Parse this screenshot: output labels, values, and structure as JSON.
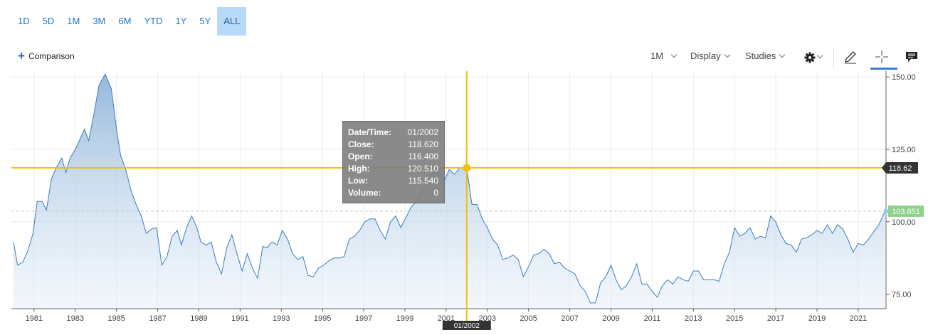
{
  "ranges": [
    {
      "label": "1D"
    },
    {
      "label": "5D"
    },
    {
      "label": "1M"
    },
    {
      "label": "3M"
    },
    {
      "label": "6M"
    },
    {
      "label": "YTD"
    },
    {
      "label": "1Y"
    },
    {
      "label": "5Y"
    },
    {
      "label": "ALL",
      "active": true
    }
  ],
  "comparison": {
    "label": "Comparison"
  },
  "toolbar": {
    "interval": "1M",
    "display": "Display",
    "studies": "Studies"
  },
  "tooltip": {
    "rows": [
      {
        "label": "Date/Time:",
        "value": "01/2002"
      },
      {
        "label": "Close:",
        "value": "118.620"
      },
      {
        "label": "Open:",
        "value": "116.400"
      },
      {
        "label": "High:",
        "value": "120.510"
      },
      {
        "label": "Low:",
        "value": "115.540"
      },
      {
        "label": "Volume:",
        "value": "0"
      }
    ]
  },
  "colors": {
    "line": "#3a7dbf",
    "crosshair": "#f2c200",
    "last": "#8fd18a",
    "crosshair_label": "#333333"
  },
  "chart_data": {
    "type": "area",
    "ylim": [
      70,
      152
    ],
    "xlim": [
      1979.9,
      2022.35
    ],
    "yticks": [
      {
        "v": 150,
        "label": "150.00"
      },
      {
        "v": 125,
        "label": "125.00"
      },
      {
        "v": 100,
        "label": "100.00"
      },
      {
        "v": 75,
        "label": "75.00"
      }
    ],
    "xticks": [
      {
        "v": 1981,
        "label": "1981"
      },
      {
        "v": 1983,
        "label": "1983"
      },
      {
        "v": 1985,
        "label": "1985"
      },
      {
        "v": 1987,
        "label": "1987"
      },
      {
        "v": 1989,
        "label": "1989"
      },
      {
        "v": 1991,
        "label": "1991"
      },
      {
        "v": 1993,
        "label": "1993"
      },
      {
        "v": 1995,
        "label": "1995"
      },
      {
        "v": 1997,
        "label": "1997"
      },
      {
        "v": 1999,
        "label": "1999"
      },
      {
        "v": 2001,
        "label": "2001"
      },
      {
        "v": 2003,
        "label": "2003"
      },
      {
        "v": 2005,
        "label": "2005"
      },
      {
        "v": 2007,
        "label": "2007"
      },
      {
        "v": 2009,
        "label": "2009"
      },
      {
        "v": 2011,
        "label": "2011"
      },
      {
        "v": 2013,
        "label": "2013"
      },
      {
        "v": 2015,
        "label": "2015"
      },
      {
        "v": 2017,
        "label": "2017"
      },
      {
        "v": 2019,
        "label": "2019"
      },
      {
        "v": 2021,
        "label": "2021"
      }
    ],
    "crosshair": {
      "x": 2002.0,
      "y": 118.62,
      "x_label": "01/2002",
      "y_label": "118.62"
    },
    "last": {
      "y": 103.651,
      "label": "103.651"
    },
    "points": [
      [
        1980.0,
        93
      ],
      [
        1980.2,
        85
      ],
      [
        1980.45,
        86
      ],
      [
        1980.7,
        90
      ],
      [
        1980.95,
        96
      ],
      [
        1981.15,
        107
      ],
      [
        1981.4,
        107
      ],
      [
        1981.6,
        104
      ],
      [
        1981.85,
        115
      ],
      [
        1982.1,
        119
      ],
      [
        1982.35,
        122
      ],
      [
        1982.55,
        117
      ],
      [
        1982.75,
        122
      ],
      [
        1983.0,
        125
      ],
      [
        1983.2,
        128
      ],
      [
        1983.45,
        132
      ],
      [
        1983.65,
        128
      ],
      [
        1983.9,
        137
      ],
      [
        1984.15,
        147
      ],
      [
        1984.45,
        151
      ],
      [
        1984.75,
        146
      ],
      [
        1985.0,
        132
      ],
      [
        1985.2,
        123
      ],
      [
        1985.45,
        118
      ],
      [
        1985.7,
        111
      ],
      [
        1985.95,
        106
      ],
      [
        1986.2,
        102
      ],
      [
        1986.45,
        96
      ],
      [
        1986.7,
        97.5
      ],
      [
        1986.95,
        98
      ],
      [
        1987.2,
        85
      ],
      [
        1987.45,
        88
      ],
      [
        1987.7,
        95
      ],
      [
        1987.95,
        97
      ],
      [
        1988.15,
        92
      ],
      [
        1988.4,
        98
      ],
      [
        1988.65,
        102
      ],
      [
        1988.9,
        98
      ],
      [
        1989.1,
        93
      ],
      [
        1989.35,
        92
      ],
      [
        1989.6,
        93
      ],
      [
        1989.85,
        86
      ],
      [
        1990.1,
        82
      ],
      [
        1990.35,
        91
      ],
      [
        1990.6,
        95.5
      ],
      [
        1990.85,
        89
      ],
      [
        1991.1,
        83
      ],
      [
        1991.35,
        89
      ],
      [
        1991.6,
        84
      ],
      [
        1991.85,
        80.5
      ],
      [
        1992.1,
        91.5
      ],
      [
        1992.3,
        91
      ],
      [
        1992.55,
        93
      ],
      [
        1992.8,
        92
      ],
      [
        1993.05,
        97
      ],
      [
        1993.3,
        94
      ],
      [
        1993.55,
        89
      ],
      [
        1993.8,
        87
      ],
      [
        1994.05,
        88
      ],
      [
        1994.3,
        81.5
      ],
      [
        1994.55,
        81
      ],
      [
        1994.8,
        84
      ],
      [
        1995.05,
        85
      ],
      [
        1995.3,
        86.5
      ],
      [
        1995.55,
        87.5
      ],
      [
        1995.8,
        87.5
      ],
      [
        1996.05,
        88
      ],
      [
        1996.3,
        94
      ],
      [
        1996.55,
        95
      ],
      [
        1996.8,
        97
      ],
      [
        1997.05,
        100
      ],
      [
        1997.3,
        101
      ],
      [
        1997.55,
        101
      ],
      [
        1997.8,
        97
      ],
      [
        1998.05,
        94
      ],
      [
        1998.3,
        100
      ],
      [
        1998.55,
        102
      ],
      [
        1998.8,
        98
      ],
      [
        1999.05,
        101.5
      ],
      [
        1999.3,
        105
      ],
      [
        1999.55,
        107
      ],
      [
        1999.8,
        110
      ],
      [
        2000.05,
        113
      ],
      [
        2000.35,
        117
      ],
      [
        2000.65,
        119
      ],
      [
        2000.9,
        114
      ],
      [
        2001.15,
        118
      ],
      [
        2001.4,
        116.4
      ],
      [
        2001.65,
        118.62
      ],
      [
        2002.0,
        118.62
      ],
      [
        2002.25,
        106
      ],
      [
        2002.5,
        106
      ],
      [
        2002.75,
        101
      ],
      [
        2003.0,
        98
      ],
      [
        2003.25,
        94
      ],
      [
        2003.5,
        92
      ],
      [
        2003.75,
        87
      ],
      [
        2004.0,
        87.5
      ],
      [
        2004.25,
        88.5
      ],
      [
        2004.5,
        87
      ],
      [
        2004.75,
        81
      ],
      [
        2005.0,
        84.5
      ],
      [
        2005.25,
        88.5
      ],
      [
        2005.5,
        89
      ],
      [
        2005.75,
        90.5
      ],
      [
        2006.0,
        89
      ],
      [
        2006.25,
        85.5
      ],
      [
        2006.5,
        86
      ],
      [
        2006.75,
        84
      ],
      [
        2007.0,
        83
      ],
      [
        2007.25,
        82
      ],
      [
        2007.5,
        78
      ],
      [
        2007.75,
        76
      ],
      [
        2008.0,
        72
      ],
      [
        2008.25,
        72
      ],
      [
        2008.5,
        79
      ],
      [
        2008.75,
        81
      ],
      [
        2009.0,
        85
      ],
      [
        2009.25,
        80
      ],
      [
        2009.5,
        76.5
      ],
      [
        2009.75,
        78
      ],
      [
        2010.0,
        81
      ],
      [
        2010.25,
        85.5
      ],
      [
        2010.5,
        78.5
      ],
      [
        2010.75,
        78.5
      ],
      [
        2011.0,
        76
      ],
      [
        2011.25,
        74
      ],
      [
        2011.5,
        78
      ],
      [
        2011.75,
        80
      ],
      [
        2012.0,
        78.5
      ],
      [
        2012.25,
        81
      ],
      [
        2012.5,
        80
      ],
      [
        2012.75,
        79.5
      ],
      [
        2013.0,
        83
      ],
      [
        2013.25,
        83
      ],
      [
        2013.5,
        80
      ],
      [
        2013.75,
        80
      ],
      [
        2014.0,
        80
      ],
      [
        2014.25,
        79.5
      ],
      [
        2014.5,
        85.5
      ],
      [
        2014.75,
        89.5
      ],
      [
        2015.0,
        98
      ],
      [
        2015.25,
        95
      ],
      [
        2015.5,
        96
      ],
      [
        2015.75,
        98
      ],
      [
        2016.0,
        94
      ],
      [
        2016.25,
        95
      ],
      [
        2016.5,
        94.5
      ],
      [
        2016.75,
        102
      ],
      [
        2017.0,
        100
      ],
      [
        2017.25,
        95.5
      ],
      [
        2017.5,
        92.5
      ],
      [
        2017.75,
        92
      ],
      [
        2018.0,
        89.5
      ],
      [
        2018.25,
        94
      ],
      [
        2018.5,
        94.5
      ],
      [
        2018.75,
        95.5
      ],
      [
        2019.0,
        97
      ],
      [
        2019.25,
        96
      ],
      [
        2019.5,
        99
      ],
      [
        2019.75,
        96
      ],
      [
        2020.0,
        99
      ],
      [
        2020.25,
        97.5
      ],
      [
        2020.5,
        94
      ],
      [
        2020.75,
        89.5
      ],
      [
        2021.0,
        92.5
      ],
      [
        2021.25,
        92
      ],
      [
        2021.5,
        94
      ],
      [
        2021.75,
        96.5
      ],
      [
        2022.0,
        99
      ],
      [
        2022.3,
        103.651
      ]
    ]
  }
}
